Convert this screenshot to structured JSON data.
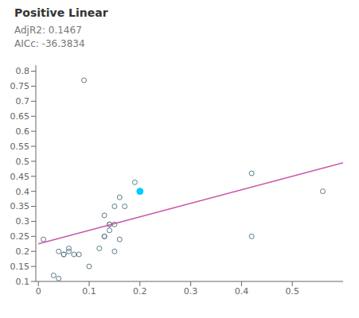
{
  "chart_data": {
    "type": "scatter",
    "title": "Positive Linear",
    "annotations": [
      "AdjR2: 0.1467",
      "AICc: -36.3834"
    ],
    "xlim": [
      -0.005,
      0.6
    ],
    "ylim": [
      0.1,
      0.82
    ],
    "xticks": [
      0.0,
      0.1,
      0.2,
      0.3,
      0.4,
      0.5
    ],
    "yticks": [
      0.1,
      0.15,
      0.2,
      0.25,
      0.3,
      0.35,
      0.4,
      0.45,
      0.5,
      0.55,
      0.6,
      0.65,
      0.7,
      0.75,
      0.8
    ],
    "grid": false,
    "series": [
      {
        "type": "scatter",
        "marker": "open circle",
        "color": "#5a7a8a",
        "x": [
          0.01,
          0.03,
          0.04,
          0.04,
          0.05,
          0.05,
          0.06,
          0.06,
          0.07,
          0.08,
          0.09,
          0.1,
          0.12,
          0.13,
          0.13,
          0.13,
          0.14,
          0.14,
          0.14,
          0.15,
          0.15,
          0.15,
          0.16,
          0.16,
          0.17,
          0.19,
          0.2,
          0.42,
          0.42,
          0.56
        ],
        "values": [
          0.24,
          0.12,
          0.11,
          0.2,
          0.19,
          0.19,
          0.2,
          0.21,
          0.19,
          0.19,
          0.77,
          0.15,
          0.21,
          0.25,
          0.25,
          0.32,
          0.29,
          0.29,
          0.27,
          0.35,
          0.29,
          0.2,
          0.24,
          0.38,
          0.35,
          0.43,
          0.4,
          0.46,
          0.25,
          0.4
        ]
      },
      {
        "type": "scatter",
        "marker": "circle",
        "color": "#00ccff",
        "x": [
          0.2
        ],
        "values": [
          0.4
        ]
      },
      {
        "type": "line",
        "color": "#cc55aa",
        "x": [
          0.0,
          0.6
        ],
        "values": [
          0.225,
          0.495
        ]
      }
    ]
  }
}
